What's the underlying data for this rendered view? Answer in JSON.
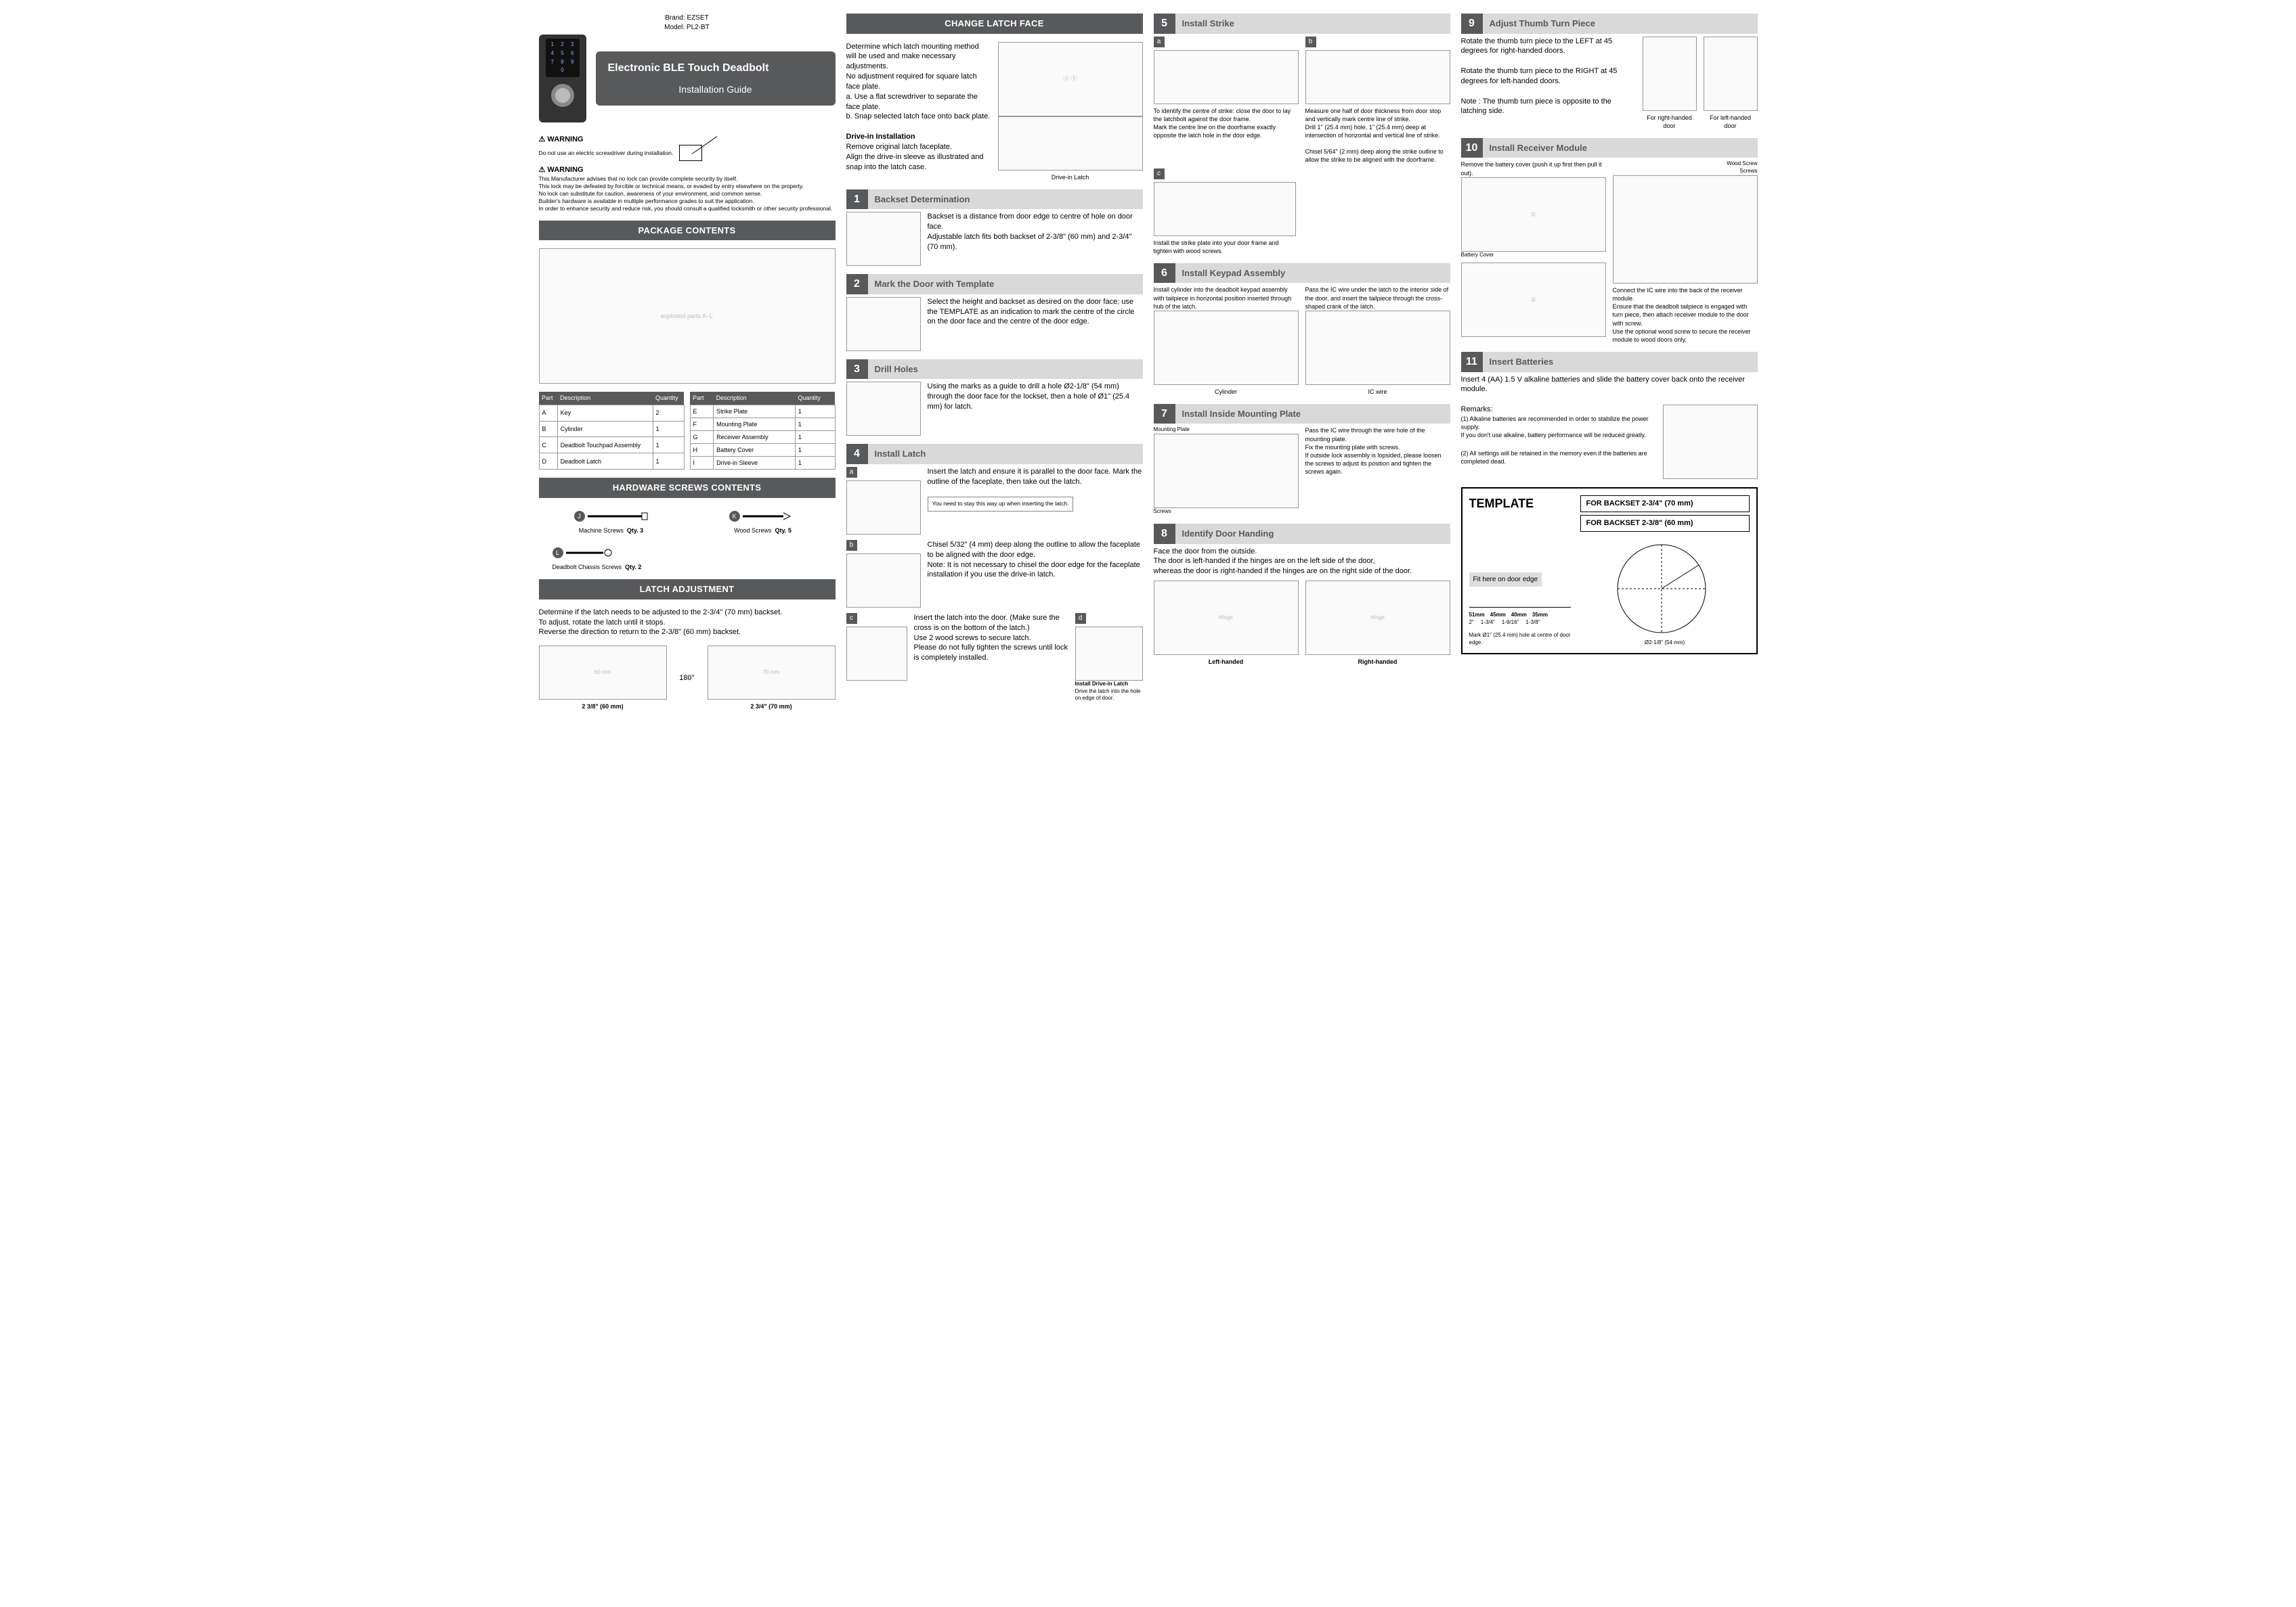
{
  "meta": {
    "brand_label": "Brand: EZSET",
    "model_label": "Model: PL2-BT",
    "product_title": "Electronic BLE Touch Deadbolt",
    "subtitle": "Installation Guide"
  },
  "keypad": [
    "1",
    "2",
    "3",
    "4",
    "5",
    "6",
    "7",
    "8",
    "9",
    "",
    "0",
    ""
  ],
  "warnings": {
    "h1": "WARNING",
    "l1": "Do not use an electric screwdriver during installation.",
    "h2": "WARNING",
    "l2a": "This Manufacturer advises that no lock can provide complete security by itself.",
    "l2b": "This lock may be defeated by forcible or technical means, or evaded by entry elsewhere on the property.",
    "l2c": "No lock can substitute for caution, awareness of your environment, and common sense.",
    "l2d": "Builder's hardware is available in multiple performance grades to suit the application.",
    "l2e": "In order to enhance security and reduce risk, you should consult a qualified locksmith or other security professional."
  },
  "sections": {
    "package": "PACKAGE CONTENTS",
    "hwscrews": "HARDWARE SCREWS CONTENTS",
    "latchadj": "LATCH ADJUSTMENT",
    "change_latch": "CHANGE LATCH FACE"
  },
  "latchadj": {
    "p1": "Determine if the latch needs to be adjusted to the 2-3/4\" (70 mm) backset.",
    "p2": "To adjust, rotate the latch until it stops.",
    "p3": "Reverse the direction to return to the 2-3/8\" (60 mm) backset.",
    "c60": "2 3/8\" (60 mm)",
    "c70": "2 3/4\" (70 mm)",
    "deg": "180°",
    "mm60": "60 mm",
    "mm70": "70 mm"
  },
  "parts_head": {
    "part": "Part",
    "desc": "Description",
    "qty": "Quantity"
  },
  "parts1": [
    {
      "p": "A",
      "d": "Key",
      "q": "2"
    },
    {
      "p": "B",
      "d": "Cylinder",
      "q": "1"
    },
    {
      "p": "C",
      "d": "Deadbolt Touchpad Assembly",
      "q": "1"
    },
    {
      "p": "D",
      "d": "Deadbolt Latch",
      "q": "1"
    }
  ],
  "parts2": [
    {
      "p": "E",
      "d": "Strike Plate",
      "q": "1"
    },
    {
      "p": "F",
      "d": "Mounting Plate",
      "q": "1"
    },
    {
      "p": "G",
      "d": "Receiver Assembly",
      "q": "1"
    },
    {
      "p": "H",
      "d": "Battery Cover",
      "q": "1"
    },
    {
      "p": "I",
      "d": "Drive-in Sleeve",
      "q": "1"
    }
  ],
  "hw": {
    "j": "Machine Screws",
    "jq": "Qty. 3",
    "k": "Wood Screws",
    "kq": "Qty. 5",
    "l": "Deadbolt  Chassis Screws",
    "lq": "Qty. 2"
  },
  "change_latch": {
    "p1": "Determine which latch mounting method will be used and make necessary adjustments.",
    "p2": "No adjustment required for square latch face plate.",
    "p3": "a. Use a flat screwdriver to separate the face plate.",
    "p4": "b. Snap selected latch face onto back plate.",
    "h2": "Drive-in Installation",
    "p5": "Remove original latch faceplate.",
    "p6": "Align the drive-in sleeve as illustrated and snap into the latch case.",
    "cap": "Drive-in Latch"
  },
  "steps": {
    "s1": {
      "n": "1",
      "t": "Backset Determination",
      "b": "Backset is a distance from door edge to centre of hole on door face.\nAdjustable latch fits both backset of 2-3/8\" (60 mm) and 2-3/4\" (70 mm)."
    },
    "s2": {
      "n": "2",
      "t": "Mark the Door with Template",
      "b": "Select the height and backset as desired on the door face; use the TEMPLATE as an indication to mark the centre of the circle on the door face and the centre of the door edge."
    },
    "s3": {
      "n": "3",
      "t": "Drill Holes",
      "b": "Using the marks as a guide to drill a hole Ø2-1/8\" (54 mm) through the door face for the lockset, then a hole of Ø1\" (25.4 mm) for latch."
    },
    "s4": {
      "n": "4",
      "t": "Install Latch",
      "a": "Insert the latch and ensure it is parallel to the door face. Mark the outline of the faceplate, then take out the latch.",
      "note": "You need to stay this way up when inserting the latch.",
      "b": "Chisel 5/32\" (4 mm) deep along the outline to allow the faceplate to be aligned with the door edge.\nNote: It is not necessary to chisel the door edge for the faceplate installation if you use the drive-in latch.",
      "c": "Insert the latch into the door. (Make sure the cross is on the bottom of the latch.)\nUse 2 wood screws to secure latch.\nPlease do not fully tighten the screws until lock is completely installed.",
      "dcap": "Install Drive-in Latch",
      "d": "Drive the latch into the hole on edge of door."
    },
    "s5": {
      "n": "5",
      "t": "Install Strike",
      "a": "To identify the centre of strike: close the door to lay the latchbolt against the door frame.\nMark the centre line on the doorframe exactly opposite the latch hole in the door edge.",
      "b": "Measure one half of door thickness from door stop and vertically mark centre line of strike.\nDrill 1\" (25.4 mm) hole, 1\" (25.4 mm) deep at intersection of horizontal and vertical line of strike.\n\nChisel 5/64\" (2 mm) deep along the strike outline to allow the strike to be aligned with the doorframe.",
      "c": "Install the strike plate into your door frame and tighten with wood screws."
    },
    "s6": {
      "n": "6",
      "t": "Install Keypad Assembly",
      "a": "Install cylinder into the deadbolt keypad assembly with tailpiece in horizontal position inserted through hub of the latch.",
      "b": "Pass the IC wire under the latch to the interior side of the door, and insert the tailpiece through the cross-shaped crank of the latch.",
      "l_cyl": "Cylinder",
      "l_ic": "IC wire"
    },
    "s7": {
      "n": "7",
      "t": "Install Inside Mounting Plate",
      "b": "Pass the IC wire through the wire hole of the mounting plate.\nFix the mounting plate with screws.\nIf outside lock assembly is lopsided, please loosen the screws to adjust its position and tighten the screws again.",
      "l_mp": "Mounting Plate",
      "l_sc": "Screws"
    },
    "s8": {
      "n": "8",
      "t": "Identify Door Handing",
      "p1": "Face the door from the outside.",
      "p2": "The door is left-handed if the hinges are on the left side of the door,",
      "p3": "whereas the door is right-handed if the hinges are on the right side of the door.",
      "lh": "Left-handed",
      "rh": "Right-handed",
      "hinge": "Hinge"
    },
    "s9": {
      "n": "9",
      "t": "Adjust Thumb Turn Piece",
      "p1": "Rotate the thumb turn piece to the LEFT at 45 degrees for right-handed doors.",
      "p2": "Rotate the thumb turn piece to the RIGHT at 45 degrees for left-handed doors.",
      "p3": "Note : The thumb turn piece is opposite to the latching side.",
      "cr": "For right-handed door",
      "cl": "For left-handed door"
    },
    "s10": {
      "n": "10",
      "t": "Install Receiver Module",
      "p1": "Remove the battery cover (push it up first then pull it out).",
      "p2": "Connect the IC wire into the back of the receiver module.\nEnsure that the deadbolt tailpiece is engaged with turn piece, then attach receiver module to the door with screw.\nUse the optional wood screw to secure the receiver module to wood doors only.",
      "l_bc": "Battery Cover",
      "l_ws": "Wood Screw",
      "l_sc": "Screws"
    },
    "s11": {
      "n": "11",
      "t": "Insert Batteries",
      "p1": "Insert 4 (AA) 1.5 V alkaline batteries and slide the battery cover back onto the receiver module.",
      "rh": "Remarks:",
      "r1": "(1) Alkaline batteries are recommended in order to stabilize the power supply.\n     If you don't use alkaline, battery performance will be reduced greatly.",
      "r2": "(2) All settings will be retained in the memory even if the batteries are completed dead."
    }
  },
  "template": {
    "title": "TEMPLATE",
    "b70": "FOR BACKSET 2-3/4\" (70 mm)",
    "b60": "FOR BACKSET 2-3/8\" (60 mm)",
    "fit": "Fit here on door edge",
    "dia": "Ø2-1/8\" (54 mm)",
    "mark": "Mark Ø1\" (25.4 mm) hole at centre of door edge.",
    "m51": "51mm",
    "m45": "45mm",
    "m40": "40mm",
    "m35": "35mm",
    "i2": "2\"",
    "i134": "1-3/4\"",
    "i1916": "1-9/16\"",
    "i138": "1-3/8\""
  },
  "style": {
    "bar_bg": "#58595b",
    "step_title_bg": "#d9d9d9"
  }
}
